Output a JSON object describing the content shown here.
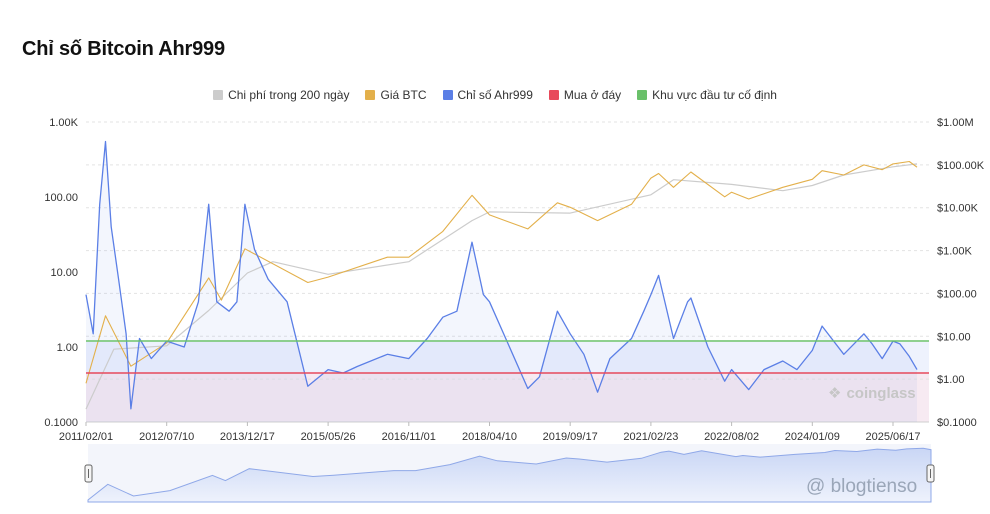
{
  "title": "Chỉ số Bitcoin Ahr999",
  "legend": [
    {
      "label": "Chi phí trong 200 ngày",
      "color": "#cccccc"
    },
    {
      "label": "Giá BTC",
      "color": "#e3b04b"
    },
    {
      "label": "Chỉ số Ahr999",
      "color": "#5b7fe6"
    },
    {
      "label": "Mua ở đáy",
      "color": "#e8495b"
    },
    {
      "label": "Khu vực đầu tư cố định",
      "color": "#6ac06a"
    }
  ],
  "brand": "coinglass",
  "watermark": "@ blogtienso",
  "chart_data": {
    "type": "line",
    "title": "Chỉ số Bitcoin Ahr999",
    "x_tick_labels": [
      "2011/02/01",
      "2012/07/10",
      "2013/12/17",
      "2015/05/26",
      "2016/11/01",
      "2018/04/10",
      "2019/09/17",
      "2021/02/23",
      "2022/08/02",
      "2024/01/09",
      "2025/06/17"
    ],
    "y_left_tick_labels": [
      "1.00K",
      "100.00",
      "10.00",
      "1.00",
      "0.1000"
    ],
    "y_right_tick_labels": [
      "$1.00M",
      "$100.00K",
      "$10.00K",
      "$1.00K",
      "$100.00",
      "$10.00",
      "$1.00",
      "$0.1000"
    ],
    "y_left_scale": "log",
    "y_left_range": [
      0.1,
      1000
    ],
    "y_right_scale": "log",
    "y_right_range": [
      0.1,
      1000000
    ],
    "thresholds": {
      "buy_bottom": 0.45,
      "dca_zone": 1.2
    },
    "series": [
      {
        "name": "Chỉ số Ahr999",
        "axis": "left",
        "color": "#5b7fe6",
        "points": [
          [
            "2011-02-01",
            5
          ],
          [
            "2011-03-20",
            1.5
          ],
          [
            "2011-05-01",
            80
          ],
          [
            "2011-06-08",
            550
          ],
          [
            "2011-07-15",
            40
          ],
          [
            "2011-09-01",
            8
          ],
          [
            "2011-10-20",
            1.5
          ],
          [
            "2011-11-20",
            0.15
          ],
          [
            "2012-01-15",
            1.3
          ],
          [
            "2012-04-01",
            0.7
          ],
          [
            "2012-07-10",
            1.2
          ],
          [
            "2012-11-01",
            1.0
          ],
          [
            "2013-02-01",
            4
          ],
          [
            "2013-04-09",
            80
          ],
          [
            "2013-06-01",
            4
          ],
          [
            "2013-08-20",
            3
          ],
          [
            "2013-10-10",
            4
          ],
          [
            "2013-12-01",
            80
          ],
          [
            "2014-02-01",
            20
          ],
          [
            "2014-05-01",
            8
          ],
          [
            "2014-09-01",
            4
          ],
          [
            "2015-01-14",
            0.3
          ],
          [
            "2015-05-26",
            0.5
          ],
          [
            "2015-09-01",
            0.45
          ],
          [
            "2015-12-01",
            0.55
          ],
          [
            "2016-06-15",
            0.8
          ],
          [
            "2016-11-01",
            0.7
          ],
          [
            "2017-03-01",
            1.3
          ],
          [
            "2017-06-10",
            2.5
          ],
          [
            "2017-09-10",
            3
          ],
          [
            "2017-12-17",
            25
          ],
          [
            "2018-03-01",
            5
          ],
          [
            "2018-04-10",
            4
          ],
          [
            "2018-08-01",
            1.2
          ],
          [
            "2018-12-15",
            0.28
          ],
          [
            "2019-03-01",
            0.4
          ],
          [
            "2019-06-26",
            3
          ],
          [
            "2019-09-17",
            1.5
          ],
          [
            "2019-12-15",
            0.8
          ],
          [
            "2020-03-13",
            0.25
          ],
          [
            "2020-06-01",
            0.7
          ],
          [
            "2020-10-20",
            1.3
          ],
          [
            "2021-01-08",
            3
          ],
          [
            "2021-02-23",
            5
          ],
          [
            "2021-04-14",
            9
          ],
          [
            "2021-07-20",
            1.3
          ],
          [
            "2021-10-20",
            4
          ],
          [
            "2021-11-10",
            4.5
          ],
          [
            "2022-03-01",
            1.0
          ],
          [
            "2022-06-18",
            0.35
          ],
          [
            "2022-08-02",
            0.5
          ],
          [
            "2022-11-21",
            0.27
          ],
          [
            "2023-03-01",
            0.5
          ],
          [
            "2023-07-01",
            0.65
          ],
          [
            "2023-10-01",
            0.5
          ],
          [
            "2024-01-09",
            0.9
          ],
          [
            "2024-03-13",
            1.9
          ],
          [
            "2024-08-01",
            0.8
          ],
          [
            "2024-12-10",
            1.5
          ],
          [
            "2025-02-01",
            1.1
          ],
          [
            "2025-04-08",
            0.7
          ],
          [
            "2025-06-17",
            1.2
          ],
          [
            "2025-08-01",
            1.1
          ],
          [
            "2025-10-01",
            0.75
          ],
          [
            "2025-11-20",
            0.5
          ]
        ]
      },
      {
        "name": "Giá BTC",
        "axis": "right",
        "color": "#e3b04b",
        "points": [
          [
            "2011-02-01",
            0.8
          ],
          [
            "2011-06-08",
            30
          ],
          [
            "2011-11-20",
            2
          ],
          [
            "2012-07-10",
            7
          ],
          [
            "2013-04-09",
            230
          ],
          [
            "2013-07-01",
            70
          ],
          [
            "2013-12-01",
            1100
          ],
          [
            "2015-01-14",
            180
          ],
          [
            "2015-05-26",
            240
          ],
          [
            "2016-06-15",
            700
          ],
          [
            "2016-11-01",
            700
          ],
          [
            "2017-06-10",
            2800
          ],
          [
            "2017-12-17",
            19500
          ],
          [
            "2018-04-10",
            6800
          ],
          [
            "2018-12-15",
            3200
          ],
          [
            "2019-06-26",
            13000
          ],
          [
            "2019-09-17",
            10200
          ],
          [
            "2020-03-13",
            5000
          ],
          [
            "2020-10-20",
            12000
          ],
          [
            "2021-02-23",
            49000
          ],
          [
            "2021-04-14",
            63000
          ],
          [
            "2021-07-20",
            30000
          ],
          [
            "2021-11-10",
            68000
          ],
          [
            "2022-06-18",
            18000
          ],
          [
            "2022-08-02",
            23000
          ],
          [
            "2022-11-21",
            16000
          ],
          [
            "2023-07-01",
            30000
          ],
          [
            "2024-01-09",
            46000
          ],
          [
            "2024-03-13",
            73000
          ],
          [
            "2024-08-01",
            58000
          ],
          [
            "2024-12-10",
            100000
          ],
          [
            "2025-04-08",
            77000
          ],
          [
            "2025-06-17",
            105000
          ],
          [
            "2025-10-01",
            120000
          ],
          [
            "2025-11-20",
            88000
          ]
        ]
      },
      {
        "name": "Chi phí trong 200 ngày",
        "axis": "right",
        "color": "#cccccc",
        "points": [
          [
            "2011-02-01",
            0.2
          ],
          [
            "2011-08-01",
            5
          ],
          [
            "2012-07-10",
            6
          ],
          [
            "2013-04-09",
            40
          ],
          [
            "2013-12-17",
            300
          ],
          [
            "2014-06-01",
            550
          ],
          [
            "2015-05-26",
            280
          ],
          [
            "2016-11-01",
            550
          ],
          [
            "2017-12-17",
            5000
          ],
          [
            "2018-04-10",
            8000
          ],
          [
            "2019-09-17",
            7500
          ],
          [
            "2021-02-23",
            20000
          ],
          [
            "2021-07-20",
            45000
          ],
          [
            "2022-08-02",
            35000
          ],
          [
            "2023-07-01",
            25000
          ],
          [
            "2024-01-09",
            33000
          ],
          [
            "2024-08-01",
            58000
          ],
          [
            "2025-06-17",
            90000
          ],
          [
            "2025-11-20",
            105000
          ]
        ]
      }
    ]
  }
}
